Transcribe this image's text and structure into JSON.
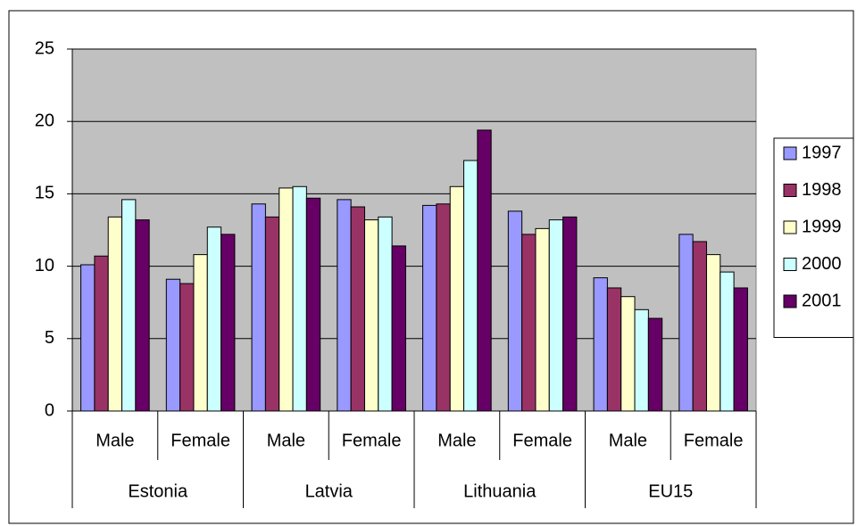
{
  "chart_data": {
    "type": "bar",
    "groups": [
      "Estonia",
      "Latvia",
      "Lithuania",
      "EU15"
    ],
    "categories": [
      "Male",
      "Female",
      "Male",
      "Female",
      "Male",
      "Female",
      "Male",
      "Female"
    ],
    "series": [
      {
        "name": "1997",
        "color": "#9999ff",
        "values": [
          10.1,
          9.1,
          14.3,
          14.6,
          14.2,
          13.8,
          9.2,
          12.2
        ]
      },
      {
        "name": "1998",
        "color": "#993366",
        "values": [
          10.7,
          8.8,
          13.4,
          14.1,
          14.3,
          12.2,
          8.5,
          11.7
        ]
      },
      {
        "name": "1999",
        "color": "#ffffcc",
        "values": [
          13.4,
          10.8,
          15.4,
          13.2,
          15.5,
          12.6,
          7.9,
          10.8
        ]
      },
      {
        "name": "2000",
        "color": "#ccffff",
        "values": [
          14.6,
          12.7,
          15.5,
          13.4,
          17.3,
          13.2,
          7.0,
          9.6
        ]
      },
      {
        "name": "2001",
        "color": "#660066",
        "values": [
          13.2,
          12.2,
          14.7,
          11.4,
          19.4,
          13.4,
          6.4,
          8.5
        ]
      }
    ],
    "ylim": [
      0,
      25
    ],
    "yticks": [
      0,
      5,
      10,
      15,
      20,
      25
    ],
    "grid": true,
    "plot_background": "#c0c0c0",
    "legend": "right"
  }
}
